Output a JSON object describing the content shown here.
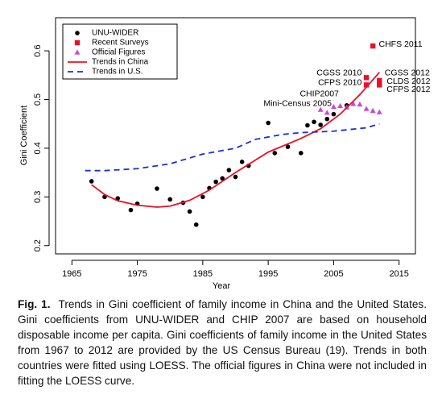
{
  "chart_data": {
    "type": "scatter",
    "x_label": "Year",
    "y_label": "Gini Coefficient",
    "xlim": [
      1962.5,
      2017.5
    ],
    "ylim": [
      0.183,
      0.668
    ],
    "xticks": [
      1965,
      1975,
      1985,
      1995,
      2005,
      2015
    ],
    "yticks": [
      0.2,
      0.3,
      0.4,
      0.5,
      0.6
    ],
    "legend": "top-left",
    "series": [
      {
        "name": "UNU-WIDER",
        "color": "#000000",
        "marker": "circle",
        "x": [
          1968,
          1970,
          1972,
          1974,
          1975,
          1978,
          1980,
          1982,
          1983,
          1984,
          1985,
          1986,
          1987,
          1988,
          1989,
          1990,
          1991,
          1992,
          1995,
          1996,
          1998,
          2000,
          2001,
          2002,
          2003,
          2004,
          2005,
          2007
        ],
        "values": [
          0.332,
          0.3,
          0.297,
          0.273,
          0.286,
          0.317,
          0.295,
          0.288,
          0.27,
          0.243,
          0.3,
          0.318,
          0.331,
          0.338,
          0.355,
          0.341,
          0.372,
          0.364,
          0.452,
          0.39,
          0.403,
          0.39,
          0.447,
          0.454,
          0.448,
          0.46,
          0.47,
          0.488
        ]
      },
      {
        "name": "Recent Surveys",
        "color": "#e8102a",
        "marker": "square",
        "x": [
          2010,
          2010,
          2011,
          2012,
          2012,
          2012
        ],
        "values": [
          0.545,
          0.53,
          0.61,
          0.539,
          0.532,
          0.53
        ]
      },
      {
        "name": "Official Figures",
        "color": "#cc44dd",
        "marker": "triangle",
        "x": [
          2003,
          2004,
          2005,
          2006,
          2007,
          2008,
          2009,
          2010,
          2011,
          2012
        ],
        "values": [
          0.479,
          0.473,
          0.485,
          0.487,
          0.484,
          0.491,
          0.49,
          0.481,
          0.477,
          0.474
        ]
      },
      {
        "name": "Trends in China",
        "color": "#e8102a",
        "line": "solid",
        "x": [
          1968,
          1970,
          1972,
          1975,
          1978,
          1980,
          1983,
          1986,
          1990,
          1995,
          2000,
          2003,
          2006,
          2009,
          2012
        ],
        "values": [
          0.325,
          0.305,
          0.292,
          0.283,
          0.279,
          0.281,
          0.293,
          0.314,
          0.35,
          0.392,
          0.42,
          0.44,
          0.47,
          0.51,
          0.556
        ]
      },
      {
        "name": "Trends in U.S.",
        "color": "#1a2fd6",
        "line": "dashed",
        "x": [
          1967,
          1970,
          1975,
          1980,
          1985,
          1990,
          1993,
          1997,
          2000,
          2005,
          2010,
          2012
        ],
        "values": [
          0.354,
          0.354,
          0.358,
          0.368,
          0.388,
          0.4,
          0.418,
          0.428,
          0.432,
          0.435,
          0.442,
          0.45
        ]
      }
    ],
    "annotations": [
      {
        "text": "CHFS 2011",
        "x": 2011.9,
        "y": 0.613
      },
      {
        "text": "CGSS 2010",
        "x": 2009.3,
        "y": 0.554
      },
      {
        "text": "CFPS 2010",
        "x": 2009.3,
        "y": 0.534
      },
      {
        "text": "CGSS 2012",
        "x": 2012.8,
        "y": 0.554
      },
      {
        "text": "CLDS 2012",
        "x": 2013.1,
        "y": 0.537
      },
      {
        "text": "CFPS 2012",
        "x": 2013.1,
        "y": 0.52
      },
      {
        "text": "CHIP2007",
        "x": 2005.8,
        "y": 0.511
      },
      {
        "text": "Mini-Census 2005",
        "x": 2004.7,
        "y": 0.491
      }
    ]
  },
  "caption_label": "Fig. 1.",
  "caption": "Trends in Gini coefficient of family income in China and the United States. Gini coefficients from UNU-WIDER and CHIP 2007 are based on household disposable income per capita. Gini coefficients of family income in the United States from 1967 to 2012 are provided by the US Census Bureau (19). Trends in both countries were fitted using LOESS. The official figures in China were not included in fitting the LOESS curve."
}
